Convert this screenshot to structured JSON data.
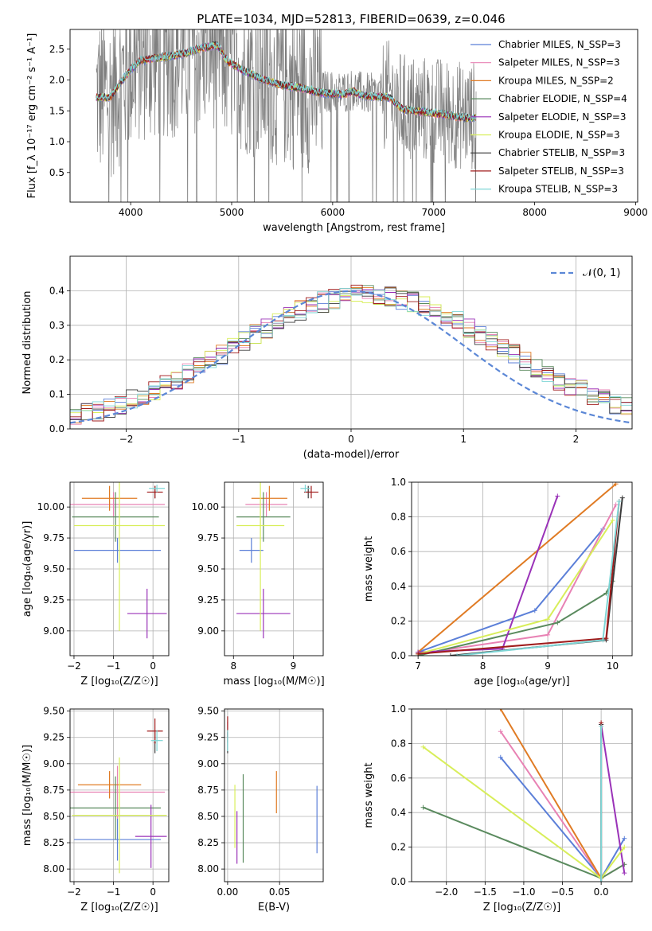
{
  "title": "PLATE=1034, MJD=52813, FIBERID=0639, z=0.046",
  "colors": {
    "Chabrier MILES": "#5b7fd8",
    "Salpeter MILES": "#e882b4",
    "Kroupa MILES": "#e07b24",
    "Chabrier ELODIE": "#5a8a5e",
    "Salpeter ELODIE": "#9a32b8",
    "Kroupa ELODIE": "#d8ee5a",
    "Chabrier STELIB": "#3a3a3a",
    "Salpeter STELIB": "#a01c1c",
    "Kroupa STELIB": "#7ed6d6",
    "data": "#7f7f7f",
    "normal": "#5b87d6"
  },
  "chart_data": [
    {
      "id": "spectrum",
      "type": "line",
      "xlabel": "wavelength [Angstrom, rest frame]",
      "ylabel": "Flux [f_λ 10⁻¹⁷ erg cm⁻² s⁻¹ A⁻¹]",
      "xlim": [
        3400,
        9020
      ],
      "ylim": [
        0.02,
        2.82
      ],
      "xticks": [
        4000,
        5000,
        6000,
        7000,
        8000,
        9000
      ],
      "yticks": [
        0.5,
        1.0,
        1.5,
        2.0,
        2.5
      ],
      "continuum": [
        [
          3700,
          1.75
        ],
        [
          3800,
          1.75
        ],
        [
          3900,
          2.0
        ],
        [
          4000,
          2.2
        ],
        [
          4100,
          2.35
        ],
        [
          4300,
          2.4
        ],
        [
          4500,
          2.45
        ],
        [
          4700,
          2.55
        ],
        [
          4860,
          2.6
        ],
        [
          4950,
          2.35
        ],
        [
          5100,
          2.2
        ],
        [
          5300,
          2.05
        ],
        [
          5500,
          1.95
        ],
        [
          5700,
          1.9
        ],
        [
          5900,
          1.82
        ],
        [
          6100,
          1.8
        ],
        [
          6200,
          1.85
        ],
        [
          6300,
          1.78
        ],
        [
          6560,
          1.75
        ],
        [
          6700,
          1.55
        ],
        [
          7000,
          1.5
        ],
        [
          7300,
          1.42
        ],
        [
          7400,
          1.42
        ]
      ],
      "data_range": [
        3660,
        7420
      ],
      "legend": [
        {
          "label": "Chabrier MILES, N_SSP=3",
          "key": "Chabrier MILES"
        },
        {
          "label": "Salpeter MILES, N_SSP=3",
          "key": "Salpeter MILES"
        },
        {
          "label": "Kroupa MILES, N_SSP=2",
          "key": "Kroupa MILES"
        },
        {
          "label": "Chabrier ELODIE, N_SSP=4",
          "key": "Chabrier ELODIE"
        },
        {
          "label": "Salpeter ELODIE, N_SSP=3",
          "key": "Salpeter ELODIE"
        },
        {
          "label": "Kroupa ELODIE, N_SSP=3",
          "key": "Kroupa ELODIE"
        },
        {
          "label": "Chabrier STELIB, N_SSP=3",
          "key": "Chabrier STELIB"
        },
        {
          "label": "Salpeter STELIB, N_SSP=3",
          "key": "Salpeter STELIB"
        },
        {
          "label": "Kroupa STELIB, N_SSP=3",
          "key": "Kroupa STELIB"
        }
      ]
    },
    {
      "id": "residuals",
      "type": "line",
      "xlabel": "(data-model)/error",
      "ylabel": "Normed distribution",
      "xlim": [
        -2.5,
        2.5
      ],
      "ylim": [
        0,
        0.5
      ],
      "xticks": [
        -2,
        -1,
        0,
        1,
        2
      ],
      "yticks": [
        0.0,
        0.1,
        0.2,
        0.3,
        0.4
      ],
      "grid": true,
      "legend": "𝒩(0, 1)",
      "legend_position": "top-right",
      "bins": 50
    },
    {
      "id": "age-vs-Z",
      "type": "scatter",
      "xlabel": "Z [log₁₀(Z/Z☉)]",
      "ylabel": "age  [log₁₀(age/yr)]",
      "xlim": [
        -2.1,
        0.4
      ],
      "ylim": [
        8.8,
        10.2
      ],
      "xticks": [
        -2,
        -1,
        0
      ],
      "yticks": [
        9.0,
        9.25,
        9.5,
        9.75,
        10.0
      ],
      "grid": true,
      "points": [
        {
          "key": "Chabrier MILES",
          "x": -0.9,
          "xerr": 1.1,
          "y": 9.65,
          "yerr": 0.1
        },
        {
          "key": "Salpeter MILES",
          "x": -1.0,
          "xerr": 1.3,
          "y": 10.02,
          "yerr": 0.1
        },
        {
          "key": "Kroupa MILES",
          "x": -1.1,
          "xerr": 0.7,
          "y": 10.07,
          "yerr": 0.1
        },
        {
          "key": "Chabrier ELODIE",
          "x": -0.95,
          "xerr": 1.1,
          "y": 9.92,
          "yerr": 0.2
        },
        {
          "key": "Salpeter ELODIE",
          "x": -0.15,
          "xerr": 0.5,
          "y": 9.14,
          "yerr": 0.2
        },
        {
          "key": "Kroupa ELODIE",
          "x": -0.85,
          "xerr": 1.15,
          "y": 9.85,
          "yerr": 0.85
        },
        {
          "key": "Chabrier STELIB",
          "x": 0.05,
          "xerr": 0.02,
          "y": 10.12,
          "yerr": 0.05
        },
        {
          "key": "Salpeter STELIB",
          "x": 0.05,
          "xerr": 0.2,
          "y": 10.12,
          "yerr": 0.05
        },
        {
          "key": "Kroupa STELIB",
          "x": 0.1,
          "xerr": 0.2,
          "y": 10.15,
          "yerr": 0.03
        }
      ]
    },
    {
      "id": "age-vs-mass",
      "type": "scatter",
      "xlabel": "mass [log₁₀(M/M☉)]",
      "ylabel": "",
      "xlim": [
        7.85,
        9.5
      ],
      "ylim": [
        8.8,
        10.2
      ],
      "xticks": [
        8,
        9
      ],
      "yticks": [
        9.0,
        9.25,
        9.5,
        9.75,
        10.0
      ],
      "grid": true,
      "points": [
        {
          "key": "Chabrier MILES",
          "x": 8.3,
          "xerr": 0.2,
          "y": 9.65,
          "yerr": 0.1
        },
        {
          "key": "Salpeter MILES",
          "x": 8.55,
          "xerr": 0.35,
          "y": 10.02,
          "yerr": 0.1
        },
        {
          "key": "Kroupa MILES",
          "x": 8.6,
          "xerr": 0.3,
          "y": 10.07,
          "yerr": 0.1
        },
        {
          "key": "Chabrier ELODIE",
          "x": 8.5,
          "xerr": 0.45,
          "y": 9.92,
          "yerr": 0.2
        },
        {
          "key": "Salpeter ELODIE",
          "x": 8.5,
          "xerr": 0.45,
          "y": 9.14,
          "yerr": 0.2
        },
        {
          "key": "Kroupa ELODIE",
          "x": 8.45,
          "xerr": 0.4,
          "y": 9.85,
          "yerr": 0.85
        },
        {
          "key": "Chabrier STELIB",
          "x": 9.25,
          "xerr": 0.05,
          "y": 10.12,
          "yerr": 0.05
        },
        {
          "key": "Salpeter STELIB",
          "x": 9.3,
          "xerr": 0.12,
          "y": 10.12,
          "yerr": 0.05
        },
        {
          "key": "Kroupa STELIB",
          "x": 9.2,
          "xerr": 0.08,
          "y": 10.15,
          "yerr": 0.03
        }
      ]
    },
    {
      "id": "weight-vs-age",
      "type": "line",
      "xlabel": "age  [log₁₀(age/yr)]",
      "ylabel": "mass weight",
      "xlim": [
        6.9,
        10.3
      ],
      "ylim": [
        0,
        1
      ],
      "xticks": [
        7,
        8,
        9,
        10
      ],
      "yticks": [
        0.0,
        0.2,
        0.4,
        0.6,
        0.8,
        1.0
      ],
      "grid": true,
      "series": [
        {
          "key": "Chabrier MILES",
          "points": [
            [
              7.0,
              0.02
            ],
            [
              8.8,
              0.26
            ],
            [
              9.85,
              0.73
            ]
          ]
        },
        {
          "key": "Salpeter MILES",
          "points": [
            [
              7.0,
              0.01
            ],
            [
              9.0,
              0.12
            ],
            [
              10.05,
              0.87
            ]
          ]
        },
        {
          "key": "Kroupa MILES",
          "points": [
            [
              7.0,
              0.02
            ],
            [
              10.05,
              0.99
            ]
          ]
        },
        {
          "key": "Chabrier ELODIE",
          "points": [
            [
              7.0,
              0.0
            ],
            [
              9.15,
              0.19
            ],
            [
              9.9,
              0.36
            ],
            [
              10.0,
              0.43
            ]
          ]
        },
        {
          "key": "Salpeter ELODIE",
          "points": [
            [
              7.0,
              0.02
            ],
            [
              8.3,
              0.04
            ],
            [
              9.15,
              0.92
            ]
          ]
        },
        {
          "key": "Kroupa ELODIE",
          "points": [
            [
              7.0,
              0.01
            ],
            [
              9.0,
              0.21
            ],
            [
              10.0,
              0.78
            ]
          ]
        },
        {
          "key": "Chabrier STELIB",
          "points": [
            [
              7.5,
              0.0
            ],
            [
              9.9,
              0.09
            ],
            [
              10.15,
              0.91
            ]
          ]
        },
        {
          "key": "Salpeter STELIB",
          "points": [
            [
              7.0,
              0.01
            ],
            [
              9.9,
              0.1
            ],
            [
              10.1,
              0.89
            ]
          ]
        },
        {
          "key": "Kroupa STELIB",
          "points": [
            [
              7.6,
              0.0
            ],
            [
              9.85,
              0.09
            ],
            [
              10.1,
              0.89
            ]
          ]
        }
      ]
    },
    {
      "id": "mass-vs-Z",
      "type": "scatter",
      "xlabel": "Z [log₁₀(Z/Z☉)]",
      "ylabel": "mass [log₁₀(M/M☉)]",
      "xlim": [
        -2.1,
        0.4
      ],
      "ylim": [
        7.88,
        9.52
      ],
      "xticks": [
        -2,
        -1,
        0
      ],
      "yticks": [
        8.0,
        8.25,
        8.5,
        8.75,
        9.0,
        9.25,
        9.5
      ],
      "grid": true,
      "points": [
        {
          "key": "Chabrier MILES",
          "x": -0.9,
          "xerr": 1.1,
          "y": 8.28,
          "yerr": 0.2
        },
        {
          "key": "Salpeter MILES",
          "x": -0.9,
          "xerr": 1.2,
          "y": 8.73,
          "yerr": 0.25
        },
        {
          "key": "Kroupa MILES",
          "x": -1.1,
          "xerr": 0.8,
          "y": 8.8,
          "yerr": 0.13
        },
        {
          "key": "Chabrier ELODIE",
          "x": -0.95,
          "xerr": 1.15,
          "y": 8.58,
          "yerr": 0.3
        },
        {
          "key": "Salpeter ELODIE",
          "x": -0.05,
          "xerr": 0.4,
          "y": 8.31,
          "yerr": 0.3
        },
        {
          "key": "Kroupa ELODIE",
          "x": -0.85,
          "xerr": 1.2,
          "y": 8.51,
          "yerr": 0.55
        },
        {
          "key": "Chabrier STELIB",
          "x": 0.05,
          "xerr": 0.02,
          "y": 9.2,
          "yerr": 0.1
        },
        {
          "key": "Salpeter STELIB",
          "x": 0.05,
          "xerr": 0.2,
          "y": 9.31,
          "yerr": 0.12
        },
        {
          "key": "Kroupa STELIB",
          "x": 0.1,
          "xerr": 0.15,
          "y": 9.22,
          "yerr": 0.1
        }
      ]
    },
    {
      "id": "mass-vs-ebv",
      "type": "scatter",
      "xlabel": "E(B-V)",
      "ylabel": "",
      "xlim": [
        -0.003,
        0.092
      ],
      "ylim": [
        7.88,
        9.52
      ],
      "xticks": [
        0.0,
        0.05
      ],
      "yticks": [
        8.0,
        8.25,
        8.5,
        8.75,
        9.0,
        9.25,
        9.5
      ],
      "grid": true,
      "points": [
        {
          "key": "Chabrier MILES",
          "x": 0.086,
          "y": 8.47,
          "yerr": 0.32
        },
        {
          "key": "Salpeter MILES",
          "x": 0.0,
          "y": 9.3,
          "yerr": 0.1
        },
        {
          "key": "Kroupa MILES",
          "x": 0.047,
          "y": 8.73,
          "yerr": 0.2
        },
        {
          "key": "Chabrier ELODIE",
          "x": 0.015,
          "y": 8.48,
          "yerr": 0.42
        },
        {
          "key": "Salpeter ELODIE",
          "x": 0.009,
          "y": 8.3,
          "yerr": 0.25
        },
        {
          "key": "Kroupa ELODIE",
          "x": 0.007,
          "y": 8.5,
          "yerr": 0.3
        },
        {
          "key": "Chabrier STELIB",
          "x": 0.0,
          "y": 9.2,
          "yerr": 0.1
        },
        {
          "key": "Salpeter STELIB",
          "x": 0.0,
          "y": 9.35,
          "yerr": 0.1
        },
        {
          "key": "Kroupa STELIB",
          "x": 0.0,
          "y": 9.22,
          "yerr": 0.1
        }
      ]
    },
    {
      "id": "weight-vs-Z",
      "type": "line",
      "xlabel": "Z [log₁₀(Z/Z☉)]",
      "ylabel": "mass weight",
      "xlim": [
        -2.45,
        0.4
      ],
      "ylim": [
        0,
        1
      ],
      "xticks": [
        -2.0,
        -1.5,
        -1.0,
        -0.5,
        0.0
      ],
      "yticks": [
        0.0,
        0.2,
        0.4,
        0.6,
        0.8,
        1.0
      ],
      "grid": true,
      "series": [
        {
          "key": "Chabrier MILES",
          "points": [
            [
              -1.3,
              0.72
            ],
            [
              0.0,
              0.02
            ],
            [
              0.3,
              0.25
            ]
          ]
        },
        {
          "key": "Salpeter MILES",
          "points": [
            [
              -1.3,
              0.87
            ],
            [
              0.0,
              0.02
            ],
            [
              0.3,
              0.1
            ]
          ]
        },
        {
          "key": "Kroupa MILES",
          "points": [
            [
              -1.3,
              1.0
            ],
            [
              0.0,
              0.02
            ]
          ]
        },
        {
          "key": "Chabrier ELODIE",
          "points": [
            [
              -2.3,
              0.43
            ],
            [
              0.0,
              0.02
            ],
            [
              0.3,
              0.1
            ]
          ]
        },
        {
          "key": "Salpeter ELODIE",
          "points": [
            [
              0.0,
              0.91
            ],
            [
              0.3,
              0.05
            ]
          ]
        },
        {
          "key": "Kroupa ELODIE",
          "points": [
            [
              -2.3,
              0.78
            ],
            [
              0.0,
              0.02
            ],
            [
              0.3,
              0.2
            ]
          ]
        },
        {
          "key": "Chabrier STELIB",
          "points": [
            [
              0.0,
              0.91
            ],
            [
              0.0,
              0.0
            ]
          ]
        },
        {
          "key": "Salpeter STELIB",
          "points": [
            [
              0.0,
              0.92
            ],
            [
              0.0,
              0.0
            ]
          ]
        },
        {
          "key": "Kroupa STELIB",
          "points": [
            [
              0.0,
              0.9
            ],
            [
              0.0,
              0.0
            ]
          ]
        }
      ]
    }
  ]
}
